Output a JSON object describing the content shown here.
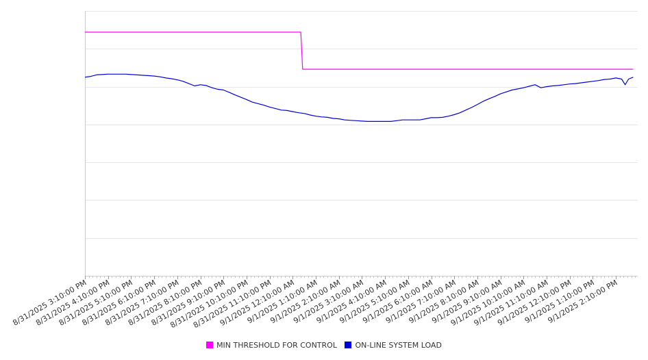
{
  "chart_data": {
    "type": "line",
    "title": "",
    "xlabel": "",
    "ylabel": "",
    "grid": true,
    "legend_position": "bottom-center",
    "x_tick_labels": [
      "8/31/2025 3:10:00 PM",
      "8/31/2025 4:10:00 PM",
      "8/31/2025 5:10:00 PM",
      "8/31/2025 6:10:00 PM",
      "8/31/2025 7:10:00 PM",
      "8/31/2025 8:10:00 PM",
      "8/31/2025 9:10:00 PM",
      "8/31/2025 10:10:00 PM",
      "8/31/2025 11:10:00 PM",
      "9/1/2025 12:10:00 AM",
      "9/1/2025 1:10:00 AM",
      "9/1/2025 2:10:00 AM",
      "9/1/2025 3:10:00 AM",
      "9/1/2025 4:10:00 AM",
      "9/1/2025 5:10:00 AM",
      "9/1/2025 6:10:00 AM",
      "9/1/2025 7:10:00 AM",
      "9/1/2025 8:10:00 AM",
      "9/1/2025 9:10:00 AM",
      "9/1/2025 10:10:00 AM",
      "9/1/2025 11:10:00 AM",
      "9/1/2025 12:10:00 PM",
      "9/1/2025 1:10:00 PM",
      "9/1/2025 2:10:00 PM"
    ],
    "y_range": [
      0,
      7
    ],
    "series": [
      {
        "name": "MIN THRESHOLD FOR CONTROL",
        "color": "#ff00ff",
        "points": [
          [
            0,
            6.44
          ],
          [
            9.35,
            6.44
          ],
          [
            9.43,
            5.46
          ],
          [
            23.75,
            5.46
          ]
        ]
      },
      {
        "name": "ON-LINE SYSTEM LOAD",
        "color": "#0000dd",
        "points": [
          [
            0,
            5.25
          ],
          [
            0.25,
            5.27
          ],
          [
            0.5,
            5.31
          ],
          [
            0.75,
            5.32
          ],
          [
            1,
            5.33
          ],
          [
            1.25,
            5.33
          ],
          [
            1.5,
            5.33
          ],
          [
            1.75,
            5.33
          ],
          [
            2,
            5.32
          ],
          [
            2.25,
            5.31
          ],
          [
            2.5,
            5.3
          ],
          [
            2.75,
            5.29
          ],
          [
            3,
            5.28
          ],
          [
            3.25,
            5.26
          ],
          [
            3.5,
            5.23
          ],
          [
            3.75,
            5.21
          ],
          [
            4,
            5.18
          ],
          [
            4.25,
            5.14
          ],
          [
            4.5,
            5.08
          ],
          [
            4.75,
            5.02
          ],
          [
            5,
            5.05
          ],
          [
            5.25,
            5.03
          ],
          [
            5.5,
            4.97
          ],
          [
            5.75,
            4.93
          ],
          [
            6,
            4.91
          ],
          [
            6.25,
            4.85
          ],
          [
            6.5,
            4.78
          ],
          [
            6.75,
            4.72
          ],
          [
            7,
            4.66
          ],
          [
            7.25,
            4.59
          ],
          [
            7.5,
            4.55
          ],
          [
            7.75,
            4.51
          ],
          [
            8,
            4.46
          ],
          [
            8.25,
            4.42
          ],
          [
            8.5,
            4.38
          ],
          [
            8.75,
            4.37
          ],
          [
            9,
            4.34
          ],
          [
            9.25,
            4.31
          ],
          [
            9.5,
            4.29
          ],
          [
            9.75,
            4.25
          ],
          [
            10,
            4.22
          ],
          [
            10.25,
            4.2
          ],
          [
            10.5,
            4.19
          ],
          [
            10.75,
            4.16
          ],
          [
            11,
            4.15
          ],
          [
            11.25,
            4.12
          ],
          [
            11.5,
            4.11
          ],
          [
            11.75,
            4.1
          ],
          [
            12,
            4.09
          ],
          [
            12.25,
            4.08
          ],
          [
            12.5,
            4.08
          ],
          [
            12.75,
            4.08
          ],
          [
            13,
            4.08
          ],
          [
            13.25,
            4.08
          ],
          [
            13.5,
            4.1
          ],
          [
            13.75,
            4.12
          ],
          [
            14,
            4.12
          ],
          [
            14.25,
            4.12
          ],
          [
            14.5,
            4.12
          ],
          [
            14.75,
            4.15
          ],
          [
            15,
            4.18
          ],
          [
            15.25,
            4.18
          ],
          [
            15.5,
            4.19
          ],
          [
            15.75,
            4.22
          ],
          [
            16,
            4.26
          ],
          [
            16.25,
            4.31
          ],
          [
            16.5,
            4.38
          ],
          [
            16.75,
            4.45
          ],
          [
            17,
            4.53
          ],
          [
            17.25,
            4.61
          ],
          [
            17.5,
            4.68
          ],
          [
            17.75,
            4.74
          ],
          [
            18,
            4.81
          ],
          [
            18.25,
            4.86
          ],
          [
            18.5,
            4.91
          ],
          [
            18.75,
            4.94
          ],
          [
            19,
            4.97
          ],
          [
            19.25,
            5.01
          ],
          [
            19.5,
            5.05
          ],
          [
            19.75,
            4.97
          ],
          [
            20,
            5.0
          ],
          [
            20.25,
            5.02
          ],
          [
            20.5,
            5.03
          ],
          [
            20.75,
            5.05
          ],
          [
            21,
            5.07
          ],
          [
            21.25,
            5.08
          ],
          [
            21.5,
            5.1
          ],
          [
            21.75,
            5.12
          ],
          [
            22,
            5.14
          ],
          [
            22.25,
            5.16
          ],
          [
            22.5,
            5.19
          ],
          [
            22.75,
            5.2
          ],
          [
            23,
            5.23
          ],
          [
            23.25,
            5.2
          ],
          [
            23.4,
            5.05
          ],
          [
            23.55,
            5.2
          ],
          [
            23.75,
            5.25
          ]
        ]
      }
    ]
  }
}
